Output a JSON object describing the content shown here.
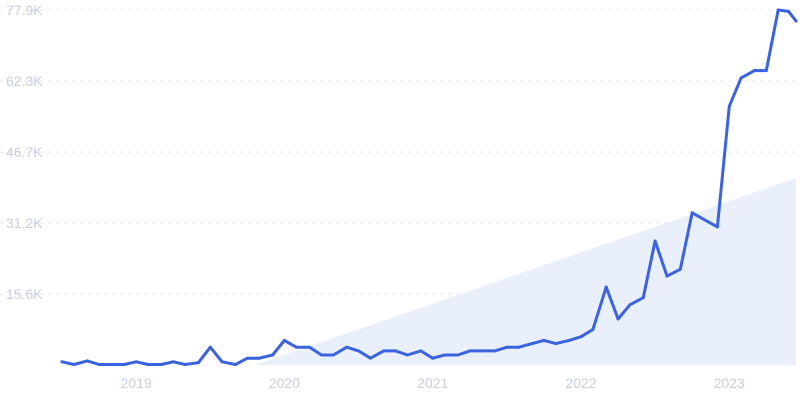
{
  "chart_data": {
    "type": "line",
    "title": "",
    "xlabel": "",
    "ylabel": "",
    "x_range": [
      2018.5,
      2023.45
    ],
    "ylim": [
      0,
      77900
    ],
    "y_ticks": [
      {
        "value": 15600,
        "label": "15.6K"
      },
      {
        "value": 31200,
        "label": "31.2K"
      },
      {
        "value": 46700,
        "label": "46.7K"
      },
      {
        "value": 62300,
        "label": "62.3K"
      },
      {
        "value": 77900,
        "label": "77.9K"
      }
    ],
    "x_ticks": [
      {
        "value": 2019,
        "label": "2019"
      },
      {
        "value": 2020,
        "label": "2020"
      },
      {
        "value": 2021,
        "label": "2021"
      },
      {
        "value": 2022,
        "label": "2022"
      },
      {
        "value": 2023,
        "label": "2023"
      }
    ],
    "grid": true,
    "legend": "none",
    "trend_band": {
      "start_x": 2019.8,
      "end_x": 2023.45,
      "upper_start": 0,
      "upper_end": 41000,
      "color": "#eaf0fb"
    },
    "series": [
      {
        "color": "#3b63df",
        "points": [
          [
            2018.5,
            700
          ],
          [
            2018.58,
            100
          ],
          [
            2018.67,
            900
          ],
          [
            2018.75,
            100
          ],
          [
            2018.83,
            100
          ],
          [
            2018.92,
            100
          ],
          [
            2019.0,
            700
          ],
          [
            2019.08,
            100
          ],
          [
            2019.17,
            100
          ],
          [
            2019.25,
            700
          ],
          [
            2019.33,
            100
          ],
          [
            2019.42,
            500
          ],
          [
            2019.5,
            3900
          ],
          [
            2019.58,
            700
          ],
          [
            2019.67,
            100
          ],
          [
            2019.75,
            1500
          ],
          [
            2019.83,
            1500
          ],
          [
            2019.92,
            2200
          ],
          [
            2020.0,
            5400
          ],
          [
            2020.08,
            3900
          ],
          [
            2020.17,
            3900
          ],
          [
            2020.25,
            2200
          ],
          [
            2020.33,
            2200
          ],
          [
            2020.42,
            3900
          ],
          [
            2020.5,
            3100
          ],
          [
            2020.58,
            1500
          ],
          [
            2020.67,
            3100
          ],
          [
            2020.75,
            3100
          ],
          [
            2020.83,
            2200
          ],
          [
            2020.92,
            3100
          ],
          [
            2021.0,
            1500
          ],
          [
            2021.08,
            2200
          ],
          [
            2021.17,
            2200
          ],
          [
            2021.25,
            3100
          ],
          [
            2021.33,
            3100
          ],
          [
            2021.42,
            3100
          ],
          [
            2021.5,
            3900
          ],
          [
            2021.58,
            3900
          ],
          [
            2021.67,
            4700
          ],
          [
            2021.75,
            5400
          ],
          [
            2021.83,
            4700
          ],
          [
            2021.92,
            5400
          ],
          [
            2022.0,
            6200
          ],
          [
            2022.08,
            7800
          ],
          [
            2022.17,
            17100
          ],
          [
            2022.25,
            10100
          ],
          [
            2022.33,
            13200
          ],
          [
            2022.42,
            14800
          ],
          [
            2022.5,
            27200
          ],
          [
            2022.58,
            19500
          ],
          [
            2022.67,
            21000
          ],
          [
            2022.75,
            33400
          ],
          [
            2022.83,
            31900
          ],
          [
            2022.92,
            30300
          ],
          [
            2023.0,
            56800
          ],
          [
            2023.08,
            63000
          ],
          [
            2023.17,
            64600
          ],
          [
            2023.25,
            64600
          ],
          [
            2023.33,
            77900
          ],
          [
            2023.4,
            77600
          ],
          [
            2023.45,
            75500
          ]
        ]
      }
    ]
  }
}
